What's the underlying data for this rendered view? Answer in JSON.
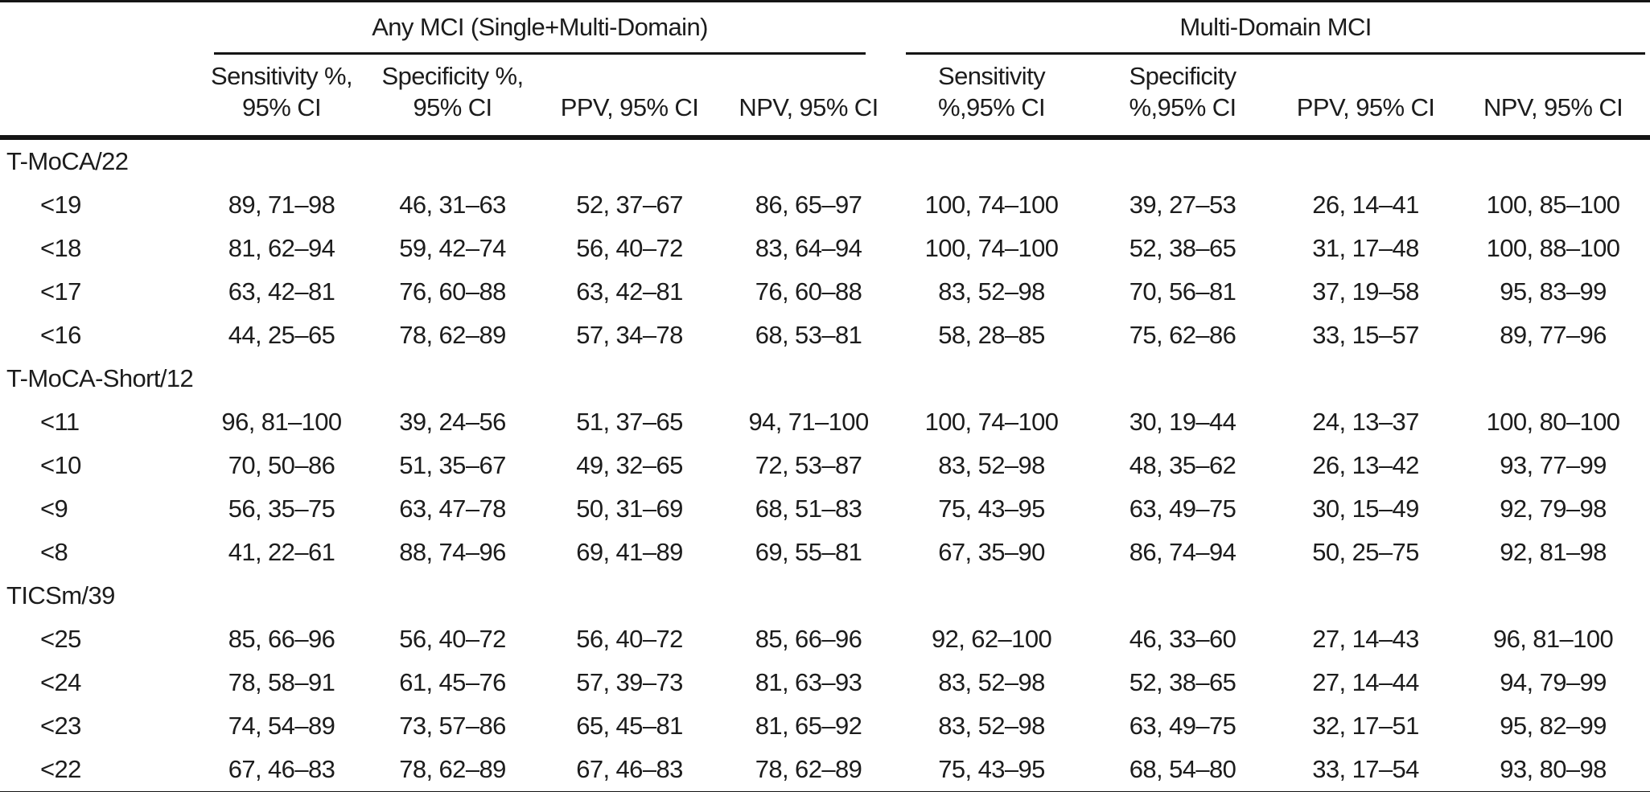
{
  "table": {
    "groups": [
      {
        "label": "Any MCI (Single+Multi-Domain)"
      },
      {
        "label": "Multi-Domain MCI"
      }
    ],
    "columns": [
      "Sensitivity %,\n95% CI",
      "Specificity %,\n95% CI",
      "PPV, 95% CI",
      "NPV, 95% CI",
      "Sensitivity\n%,95% CI",
      "Specificity\n%,95% CI",
      "PPV, 95% CI",
      "NPV, 95% CI"
    ],
    "sections": [
      {
        "label": "T-MoCA/22",
        "rows": [
          {
            "cutoff": "<19",
            "values": [
              "89, 71–98",
              "46, 31–63",
              "52, 37–67",
              "86, 65–97",
              "100, 74–100",
              "39, 27–53",
              "26, 14–41",
              "100, 85–100"
            ]
          },
          {
            "cutoff": "<18",
            "values": [
              "81, 62–94",
              "59, 42–74",
              "56, 40–72",
              "83, 64–94",
              "100, 74–100",
              "52, 38–65",
              "31, 17–48",
              "100, 88–100"
            ]
          },
          {
            "cutoff": "<17",
            "values": [
              "63, 42–81",
              "76, 60–88",
              "63, 42–81",
              "76, 60–88",
              "83, 52–98",
              "70, 56–81",
              "37, 19–58",
              "95, 83–99"
            ]
          },
          {
            "cutoff": "<16",
            "values": [
              "44, 25–65",
              "78, 62–89",
              "57, 34–78",
              "68, 53–81",
              "58, 28–85",
              "75, 62–86",
              "33, 15–57",
              "89, 77–96"
            ]
          }
        ]
      },
      {
        "label": "T-MoCA-Short/12",
        "rows": [
          {
            "cutoff": "<11",
            "values": [
              "96, 81–100",
              "39, 24–56",
              "51, 37–65",
              "94, 71–100",
              "100, 74–100",
              "30, 19–44",
              "24, 13–37",
              "100, 80–100"
            ]
          },
          {
            "cutoff": "<10",
            "values": [
              "70, 50–86",
              "51, 35–67",
              "49, 32–65",
              "72, 53–87",
              "83, 52–98",
              "48, 35–62",
              "26, 13–42",
              "93, 77–99"
            ]
          },
          {
            "cutoff": "<9",
            "values": [
              "56, 35–75",
              "63, 47–78",
              "50, 31–69",
              "68, 51–83",
              "75, 43–95",
              "63, 49–75",
              "30, 15–49",
              "92, 79–98"
            ]
          },
          {
            "cutoff": "<8",
            "values": [
              "41, 22–61",
              "88, 74–96",
              "69, 41–89",
              "69, 55–81",
              "67, 35–90",
              "86, 74–94",
              "50, 25–75",
              "92, 81–98"
            ]
          }
        ]
      },
      {
        "label": "TICSm/39",
        "rows": [
          {
            "cutoff": "<25",
            "values": [
              "85, 66–96",
              "56, 40–72",
              "56, 40–72",
              "85, 66–96",
              "92, 62–100",
              "46, 33–60",
              "27, 14–43",
              "96, 81–100"
            ]
          },
          {
            "cutoff": "<24",
            "values": [
              "78, 58–91",
              "61, 45–76",
              "57, 39–73",
              "81, 63–93",
              "83, 52–98",
              "52, 38–65",
              "27, 14–44",
              "94, 79–99"
            ]
          },
          {
            "cutoff": "<23",
            "values": [
              "74, 54–89",
              "73, 57–86",
              "65, 45–81",
              "81, 65–92",
              "83, 52–98",
              "63, 49–75",
              "32, 17–51",
              "95, 82–99"
            ]
          },
          {
            "cutoff": "<22",
            "values": [
              "67, 46–83",
              "78, 62–89",
              "67, 46–83",
              "78, 62–89",
              "75, 43–95",
              "68, 54–80",
              "33, 17–54",
              "93, 80–98"
            ]
          }
        ]
      }
    ]
  }
}
